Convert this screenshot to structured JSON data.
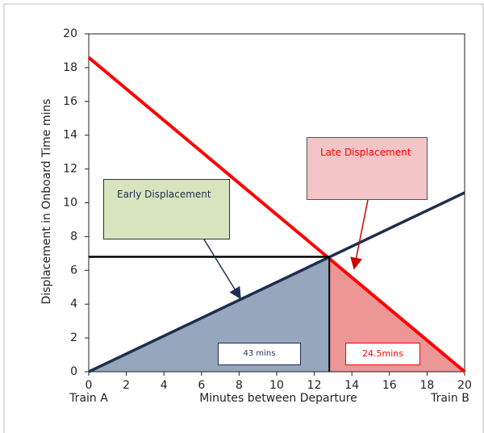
{
  "chart_data": {
    "type": "line",
    "xlabel": "Minutes between Departure",
    "ylabel": "Displacement in Onboard Time mins",
    "x_end_labels": [
      "Train A",
      "Train B"
    ],
    "xlim": [
      0,
      20
    ],
    "xticks": [
      0,
      2,
      4,
      6,
      8,
      10,
      12,
      14,
      16,
      18,
      20
    ],
    "ylim": [
      0,
      20
    ],
    "yticks": [
      0,
      2,
      4,
      6,
      8,
      10,
      12,
      14,
      16,
      18,
      20
    ],
    "series": [
      {
        "color": "#ff0000",
        "x": [
          0,
          20
        ],
        "values": [
          18.6,
          0
        ]
      },
      {
        "color": "#1f2d50",
        "x": [
          0,
          20
        ],
        "values": [
          0,
          10.6
        ]
      },
      {
        "color": "#000000",
        "x": [
          0,
          12.8
        ],
        "values": [
          6.8,
          6.8
        ]
      },
      {
        "color": "#000000",
        "x": [
          12.8,
          12.8
        ],
        "values": [
          6.8,
          0
        ]
      }
    ],
    "annotations": [
      {
        "text": "Early Displacement",
        "color": "#1f2d50"
      },
      {
        "text": "Late Displacement",
        "color": "#ff0000"
      },
      {
        "text": "43 mins",
        "color": "#1f2d50"
      },
      {
        "text": "24.5mins",
        "color": "#ff0000"
      }
    ]
  }
}
